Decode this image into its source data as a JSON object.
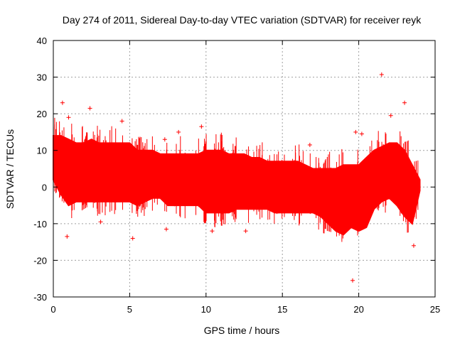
{
  "chart_data": {
    "type": "scatter",
    "title": "Day 274 of 2011, Sidereal Day-to-day VTEC variation (SDTVAR) for receiver reyk",
    "xlabel": "GPS time / hours",
    "ylabel": "SDTVAR / TECUs",
    "xlim": [
      0,
      25
    ],
    "ylim": [
      -30,
      40
    ],
    "xticks": [
      "0",
      "5",
      "10",
      "15",
      "20",
      "25"
    ],
    "yticks": [
      "40",
      "30",
      "20",
      "10",
      "0",
      "-10",
      "-20",
      "-30"
    ],
    "grid": true,
    "marker": "+",
    "color": "#ff0000",
    "series": [
      {
        "name": "SDTVAR",
        "band_hours": [
          0,
          0.5,
          1,
          1.5,
          2,
          2.5,
          3,
          3.5,
          4,
          4.5,
          5,
          5.5,
          6,
          6.5,
          7,
          7.5,
          8,
          8.5,
          9,
          9.5,
          10,
          10.5,
          11,
          11.5,
          12,
          12.5,
          13,
          13.5,
          14,
          14.5,
          15,
          15.5,
          16,
          16.5,
          17,
          17.5,
          18,
          18.5,
          19,
          19.5,
          20,
          20.5,
          21,
          21.5,
          22,
          22.5,
          23,
          23.5,
          24
        ],
        "band_upper": [
          14,
          14,
          13,
          12,
          12,
          13,
          12,
          12,
          12,
          12,
          12,
          10,
          10,
          10,
          9,
          9,
          9,
          9,
          9,
          9,
          10,
          10,
          10,
          9,
          9,
          9,
          8,
          8,
          7,
          7,
          7,
          7,
          7,
          6,
          5,
          5,
          5,
          5,
          6,
          6,
          6,
          8,
          10,
          11,
          12,
          12,
          10,
          6,
          2
        ],
        "band_lower": [
          2,
          -2,
          -5,
          -4,
          -4,
          -4,
          -4,
          -4,
          -4,
          -4,
          -4,
          -5,
          -4,
          -3,
          -3,
          -5,
          -5,
          -5,
          -5,
          -5,
          -7,
          -7,
          -7,
          -7,
          -6,
          -6,
          -6,
          -6,
          -6,
          -7,
          -7,
          -7,
          -7,
          -7,
          -7,
          -8,
          -10,
          -12,
          -13,
          -11,
          -12,
          -11,
          -6,
          -4,
          -3,
          -5,
          -8,
          -10,
          -1
        ],
        "outliers": [
          {
            "x": 0.6,
            "y": 23
          },
          {
            "x": 0.9,
            "y": -13.5
          },
          {
            "x": 1.0,
            "y": 19
          },
          {
            "x": 2.4,
            "y": 21.5
          },
          {
            "x": 3.1,
            "y": -9.5
          },
          {
            "x": 4.5,
            "y": 18
          },
          {
            "x": 5.2,
            "y": -14
          },
          {
            "x": 7.3,
            "y": 13
          },
          {
            "x": 7.4,
            "y": -11.5
          },
          {
            "x": 8.2,
            "y": 15
          },
          {
            "x": 9.7,
            "y": 16.5
          },
          {
            "x": 10.4,
            "y": -12
          },
          {
            "x": 12.6,
            "y": -12
          },
          {
            "x": 16.8,
            "y": 11.5
          },
          {
            "x": 19.6,
            "y": -25.5
          },
          {
            "x": 19.8,
            "y": 15
          },
          {
            "x": 20.2,
            "y": 14.5
          },
          {
            "x": 21.5,
            "y": 30.7
          },
          {
            "x": 22.1,
            "y": 19.5
          },
          {
            "x": 23.0,
            "y": 23
          },
          {
            "x": 23.6,
            "y": -16
          }
        ]
      }
    ]
  }
}
